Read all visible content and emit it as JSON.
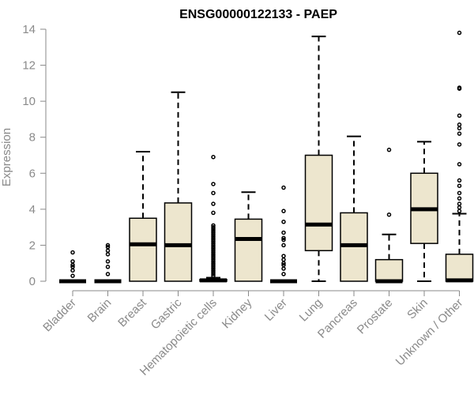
{
  "chart_data": {
    "type": "boxplot",
    "title": "ENSG00000122133 - PAEP",
    "ylabel": "Expression",
    "xlabel": "",
    "ylim": [
      0,
      14
    ],
    "yticks": [
      0,
      2,
      4,
      6,
      8,
      10,
      12,
      14
    ],
    "grid": false,
    "colors": {
      "box_fill": "#ede6ce",
      "box_stroke": "#000000",
      "axis": "#8a8a8a"
    },
    "categories": [
      "Bladder",
      "Brain",
      "Breast",
      "Gastric",
      "Hematopoietic cells",
      "Kidney",
      "Liver",
      "Lung",
      "Pancreas",
      "Prostate",
      "Skin",
      "Unknown / Other"
    ],
    "boxes": [
      {
        "label": "Bladder",
        "min": 0,
        "q1": 0,
        "median": 0,
        "q3": 0,
        "max": 0,
        "outliers": [
          0.3,
          0.6,
          0.8,
          0.9,
          1.1,
          1.6
        ]
      },
      {
        "label": "Brain",
        "min": 0,
        "q1": 0,
        "median": 0,
        "q3": 0,
        "max": 0,
        "outliers": [
          0.4,
          0.8,
          1.1,
          1.5,
          1.7,
          1.9,
          2.0
        ]
      },
      {
        "label": "Breast",
        "min": 0,
        "q1": 0,
        "median": 2.05,
        "q3": 3.5,
        "max": 7.2,
        "outliers": []
      },
      {
        "label": "Gastric",
        "min": 0,
        "q1": 0,
        "median": 2.0,
        "q3": 4.35,
        "max": 10.5,
        "outliers": []
      },
      {
        "label": "Hematopoietic cells",
        "min": 0,
        "q1": 0,
        "median": 0.05,
        "q3": 0.1,
        "max": 0.2,
        "outliers": [
          0.3,
          0.4,
          0.5,
          0.6,
          0.7,
          0.8,
          0.9,
          1.0,
          1.1,
          1.2,
          1.3,
          1.4,
          1.5,
          1.6,
          1.7,
          1.8,
          1.9,
          2.0,
          2.1,
          2.2,
          2.3,
          2.4,
          2.5,
          2.6,
          2.7,
          2.8,
          2.9,
          3.0,
          3.1,
          3.8,
          4.3,
          4.9,
          5.4,
          6.9
        ]
      },
      {
        "label": "Kidney",
        "min": 0,
        "q1": 0,
        "median": 2.35,
        "q3": 3.45,
        "max": 4.95,
        "outliers": []
      },
      {
        "label": "Liver",
        "min": 0,
        "q1": 0,
        "median": 0,
        "q3": 0,
        "max": 0,
        "outliers": [
          0.4,
          0.7,
          0.9,
          1.0,
          1.2,
          1.4,
          2.0,
          2.3,
          2.4,
          2.7,
          3.3,
          3.9,
          5.2
        ]
      },
      {
        "label": "Lung",
        "min": 0,
        "q1": 1.7,
        "median": 3.15,
        "q3": 7.0,
        "max": 13.6,
        "outliers": []
      },
      {
        "label": "Pancreas",
        "min": 0,
        "q1": 0,
        "median": 2.0,
        "q3": 3.8,
        "max": 8.05,
        "outliers": []
      },
      {
        "label": "Prostate",
        "min": 0,
        "q1": 0,
        "median": 0,
        "q3": 1.2,
        "max": 2.6,
        "outliers": [
          3.7,
          7.3
        ]
      },
      {
        "label": "Skin",
        "min": 0,
        "q1": 2.1,
        "median": 4.0,
        "q3": 6.0,
        "max": 7.75,
        "outliers": []
      },
      {
        "label": "Unknown / Other",
        "min": 0,
        "q1": 0,
        "median": 0.05,
        "q3": 1.5,
        "max": 3.75,
        "outliers": [
          3.9,
          4.1,
          4.3,
          4.6,
          4.9,
          5.3,
          5.6,
          6.5,
          7.6,
          8.2,
          8.5,
          8.7,
          9.2,
          10.7,
          10.75,
          13.8
        ]
      }
    ]
  }
}
